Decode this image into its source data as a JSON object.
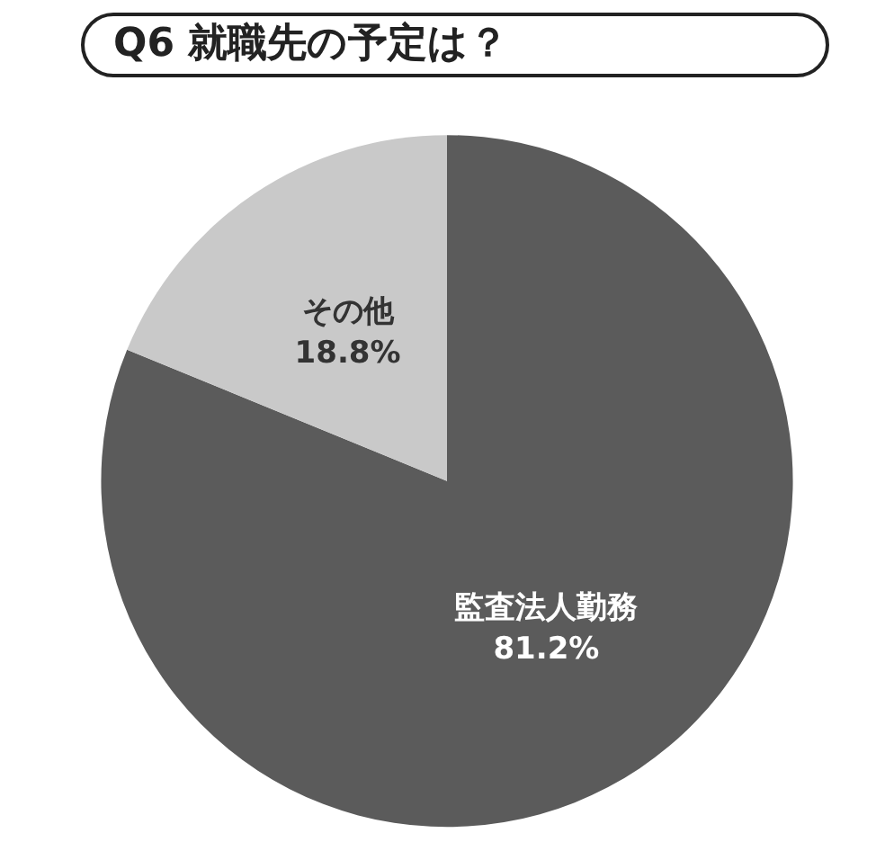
{
  "chart_data": {
    "type": "pie",
    "title": "Q6 就職先の予定は？",
    "categories": [
      "監査法人勤務",
      "その他"
    ],
    "values": [
      81.2,
      18.8
    ],
    "value_labels": [
      "81.2%",
      "18.8%"
    ],
    "colors": [
      "#5b5b5b",
      "#c9c9c9"
    ],
    "legend": false
  }
}
